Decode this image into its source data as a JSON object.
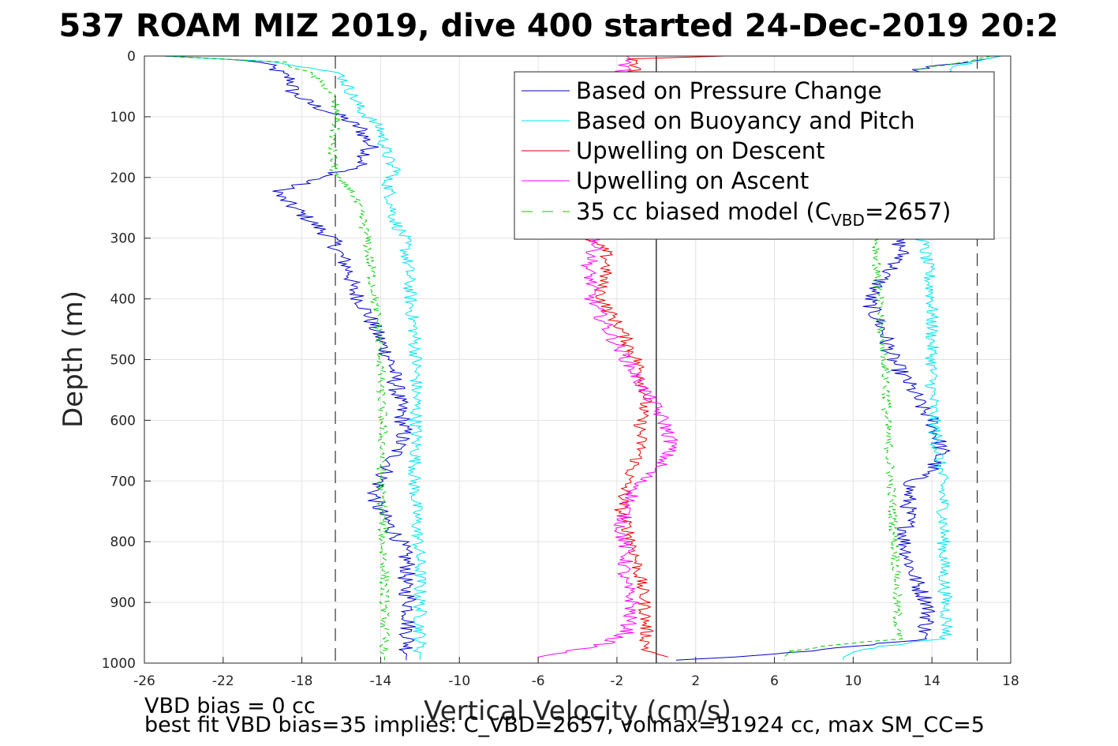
{
  "chart_data": {
    "type": "line",
    "title": "537 ROAM MIZ 2019, dive 400 started 24-Dec-2019 20:2",
    "xlabel": "Vertical Velocity (cm/s)",
    "ylabel": "Depth (m)",
    "xlim": [
      -26,
      18
    ],
    "ylim": [
      1000,
      0
    ],
    "y_reversed": true,
    "grid": true,
    "legend_position": "top-right",
    "xticks": [
      "-26",
      "-22",
      "-18",
      "-14",
      "-10",
      "-6",
      "-2",
      "2",
      "6",
      "10",
      "14",
      "18"
    ],
    "yticks": [
      "0",
      "100",
      "200",
      "300",
      "400",
      "500",
      "600",
      "700",
      "800",
      "900",
      "1000"
    ],
    "vertical_lines": [
      {
        "x": -16.3,
        "style": "dashed",
        "color": "#333333"
      },
      {
        "x": 16.3,
        "style": "dashed",
        "color": "#333333"
      },
      {
        "x": 0,
        "style": "solid",
        "color": "#000000"
      }
    ],
    "series": [
      {
        "name": "Based on Pressure Change",
        "color": "#0000cc",
        "style": "solid",
        "noise": 0.45,
        "branches": [
          {
            "depth": [
              0,
              5,
              10,
              30,
              40,
              60,
              80,
              100,
              120,
              150,
              180,
              200,
              220,
              230,
              260,
              300,
              330,
              360,
              380,
              420,
              450,
              500,
              530,
              580,
              620,
              660,
              700,
              720,
              740,
              760,
              800,
              840,
              870,
              900,
              940,
              970,
              990,
              995
            ],
            "x": [
              -25,
              -22,
              -20,
              -19,
              -18.5,
              -18.5,
              -17.5,
              -16,
              -15,
              -14.5,
              -15,
              -17,
              -19,
              -19.2,
              -18,
              -16.5,
              -16,
              -15.5,
              -15.5,
              -14.7,
              -14.3,
              -13.5,
              -13.3,
              -13,
              -12.8,
              -13.3,
              -14,
              -14.3,
              -14.2,
              -13.8,
              -13,
              -12.6,
              -12.8,
              -12.5,
              -12.6,
              -12.6,
              -12.7,
              -12.7
            ]
          },
          {
            "depth": [
              0,
              10,
              20,
              30,
              300,
              320,
              340,
              360,
              380,
              400,
              420,
              450,
              470,
              500,
              520,
              550,
              580,
              600,
              620,
              650,
              680,
              700,
              720,
              760,
              800,
              850,
              880,
              900,
              930,
              960,
              970,
              980,
              990,
              995
            ],
            "x": [
              17.5,
              16,
              13.5,
              13,
              12.2,
              12.5,
              12.3,
              11.6,
              11.2,
              10.8,
              11,
              11.5,
              11.7,
              12,
              12.4,
              13,
              13.5,
              14,
              14.2,
              14.5,
              14,
              13,
              12.8,
              12.8,
              12.6,
              13,
              13.4,
              13.8,
              13.8,
              13.5,
              11,
              8,
              4,
              1
            ]
          }
        ]
      },
      {
        "name": "Based on Buoyancy and Pitch",
        "color": "#00e5ee",
        "style": "solid",
        "noise": 0.35,
        "branches": [
          {
            "depth": [
              0,
              5,
              10,
              30,
              60,
              90,
              120,
              150,
              180,
              190,
              200,
              230,
              270,
              300,
              350,
              400,
              450,
              500,
              550,
              600,
              650,
              700,
              750,
              800,
              850,
              900,
              950,
              990,
              995
            ],
            "x": [
              -25,
              -22,
              -19,
              -16,
              -15.5,
              -15,
              -14,
              -13.8,
              -13.5,
              -13,
              -13.7,
              -13.5,
              -13.3,
              -12.8,
              -12.6,
              -12.5,
              -12.3,
              -12.2,
              -12.2,
              -12.2,
              -12.2,
              -12.3,
              -12.2,
              -12.1,
              -12,
              -12,
              -12,
              -12,
              -12
            ]
          },
          {
            "depth": [
              0,
              10,
              20,
              40,
              300,
              350,
              400,
              450,
              500,
              550,
              600,
              650,
              700,
              750,
              800,
              850,
              900,
              950,
              960,
              970,
              980,
              990,
              995
            ],
            "x": [
              17.5,
              16,
              15,
              14.5,
              13.5,
              13.8,
              14,
              14,
              14,
              14,
              14.1,
              14.3,
              14.5,
              14.6,
              14.6,
              14.6,
              14.7,
              14.8,
              14.5,
              12,
              10.2,
              9.5,
              9.5
            ]
          }
        ]
      },
      {
        "name": "Upwelling on Descent",
        "color": "#ee0000",
        "style": "solid",
        "noise": 0.35,
        "branches": [
          {
            "depth": [
              0,
              5,
              10,
              300,
              320,
              340,
              360,
              380,
              400,
              450,
              500,
              530,
              560,
              600,
              650,
              700,
              750,
              800,
              850,
              900,
              950,
              980,
              990
            ],
            "x": [
              3.5,
              -1.5,
              -1,
              -3.5,
              -2.6,
              -2.5,
              -2.6,
              -2.8,
              -2.8,
              -1.8,
              -1,
              -0.7,
              -0.5,
              -0.8,
              -0.8,
              -1.5,
              -1.8,
              -1.2,
              -0.9,
              -0.6,
              -0.5,
              -0.5,
              0.6
            ]
          }
        ]
      },
      {
        "name": "Upwelling on Ascent",
        "color": "#ff00ff",
        "style": "solid",
        "noise": 0.4,
        "branches": [
          {
            "depth": [
              0,
              5,
              10,
              330,
              350,
              370,
              400,
              430,
              460,
              500,
              540,
              580,
              610,
              640,
              670,
              700,
              740,
              780,
              820,
              860,
              900,
              950,
              970,
              990,
              995
            ],
            "x": [
              -1.5,
              -1.3,
              -1.6,
              -3.2,
              -3.5,
              -3.3,
              -3.3,
              -2.8,
              -2.3,
              -1.5,
              -0.8,
              0,
              0.5,
              0.8,
              0.3,
              -0.8,
              -1.5,
              -1.8,
              -1.5,
              -1.7,
              -1.2,
              -1.5,
              -2.8,
              -6,
              -6
            ]
          }
        ]
      },
      {
        "name": "35 cc biased model (C",
        "name_sub": "VBD",
        "name_end": "=2657)",
        "color": "#00cc00",
        "style": "dashed",
        "noise": 0.25,
        "branches": [
          {
            "depth": [
              0,
              5,
              10,
              30,
              60,
              100,
              150,
              200,
              220,
              260,
              300,
              350,
              400,
              450,
              500,
              550,
              600,
              650,
              700,
              750,
              800,
              850,
              900,
              950,
              990,
              995
            ],
            "x": [
              -25,
              -22,
              -19,
              -17.5,
              -16.5,
              -16.2,
              -16.5,
              -16.3,
              -15.5,
              -15,
              -14.7,
              -14.5,
              -14.3,
              -14.1,
              -14,
              -14,
              -13.9,
              -13.9,
              -14,
              -13.9,
              -13.9,
              -13.8,
              -13.8,
              -13.8,
              -13.8,
              -13.8
            ]
          },
          {
            "depth": [
              0,
              10,
              20,
              40,
              300,
              350,
              400,
              450,
              500,
              550,
              600,
              650,
              700,
              750,
              800,
              850,
              900,
              950,
              960,
              970,
              980,
              990,
              995
            ],
            "x": [
              17,
              15.5,
              13.5,
              12.5,
              11.2,
              11.2,
              11.3,
              11.4,
              11.6,
              11.7,
              11.7,
              11.8,
              11.9,
              12,
              12.1,
              12.2,
              12.2,
              12.3,
              12.3,
              9,
              6.8,
              6.5,
              6.5
            ]
          }
        ]
      }
    ]
  },
  "captions": {
    "line1": "VBD bias = 0 cc",
    "line2": "best fit VBD bias=35 implies: C_VBD=2657, volmax=51924 cc, max SM_CC=5"
  }
}
